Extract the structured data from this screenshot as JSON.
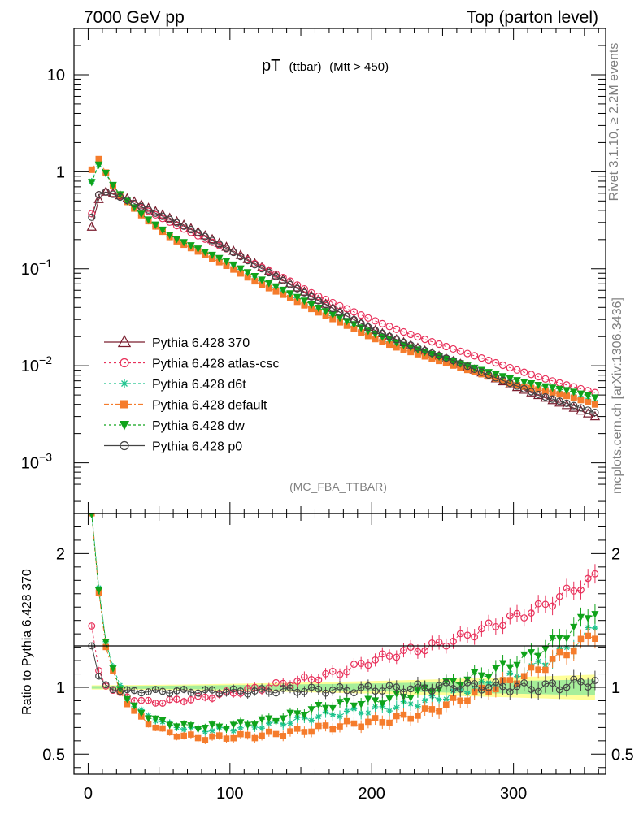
{
  "header": {
    "left": "7000 GeV pp",
    "right": "Top (parton level)"
  },
  "side": {
    "rivet": "Rivet 3.1.10, ≥ 2.2M events",
    "mcplots": "mcplots.cern.ch [arXiv:1306.3436]"
  },
  "plot": {
    "title_main": "pT",
    "title_sub1": "(ttbar)",
    "title_sub2": "(Mtt > 450)",
    "analysis": "(MC_FBA_TTBAR)",
    "ratio_ylabel": "Ratio to Pythia 6.428 370"
  },
  "chart_data": {
    "type": "scatter",
    "x_range": [
      -10,
      365
    ],
    "main_yscale": "log",
    "main_ylim": [
      0.0003,
      30
    ],
    "ratio_ylim": [
      0.35,
      2.3
    ],
    "main_ticks": [
      {
        "value": 10,
        "base": "10",
        "exp": ""
      },
      {
        "value": 1,
        "base": "1",
        "exp": ""
      },
      {
        "value": 0.1,
        "base": "10",
        "exp": "−1"
      },
      {
        "value": 0.01,
        "base": "10",
        "exp": "−2"
      },
      {
        "value": 0.001,
        "base": "10",
        "exp": "−3"
      }
    ],
    "ratio_ticks": [
      {
        "value": 2,
        "label": "2"
      },
      {
        "value": 1,
        "label": "1"
      },
      {
        "value": 0.5,
        "label": "0.5"
      }
    ],
    "x_ticks": [
      {
        "value": 0,
        "label": "0"
      },
      {
        "value": 100,
        "label": "100"
      },
      {
        "value": 200,
        "label": "200"
      },
      {
        "value": 300,
        "label": "300"
      }
    ],
    "bin_width": 5,
    "x_start": 2.5,
    "n_bins": 72,
    "series": [
      {
        "name": "Pythia 6.428 370",
        "color": "#7a1d2e",
        "marker": "triangle-open",
        "dash": "",
        "main": {
          "x": [
            2.5,
            7.5,
            12.5,
            20,
            40,
            60,
            80,
            100,
            120,
            140,
            160,
            180,
            200,
            220,
            240,
            260,
            280,
            300,
            320,
            340,
            357.5
          ],
          "y": [
            0.27,
            0.52,
            0.62,
            0.59,
            0.44,
            0.32,
            0.23,
            0.16,
            0.108,
            0.074,
            0.05,
            0.034,
            0.024,
            0.018,
            0.0138,
            0.0108,
            0.0082,
            0.0062,
            0.0048,
            0.0038,
            0.003
          ]
        },
        "ratio": {
          "x": [
            2.5,
            357.5
          ],
          "y": [
            1,
            1
          ]
        }
      },
      {
        "name": "Pythia 6.428 atlas-csc",
        "color": "#e8305a",
        "marker": "circle-open",
        "dash": "3,3",
        "main": {
          "x": [
            2.5,
            7.5,
            12.5,
            20,
            40,
            60,
            80,
            100,
            120,
            140,
            160,
            180,
            200,
            220,
            240,
            260,
            280,
            300,
            320,
            340,
            357.5
          ],
          "y": [
            0.37,
            0.58,
            0.62,
            0.58,
            0.41,
            0.29,
            0.21,
            0.155,
            0.108,
            0.078,
            0.054,
            0.04,
            0.03,
            0.023,
            0.0182,
            0.0145,
            0.0117,
            0.0093,
            0.0075,
            0.0062,
            0.0053
          ]
        },
        "ratio": {
          "x": [
            2.5,
            7.5,
            12.5,
            20,
            30,
            40,
            50,
            60,
            80,
            100,
            120,
            140,
            160,
            180,
            200,
            220,
            240,
            260,
            280,
            300,
            320,
            340,
            357.5
          ],
          "y": [
            1.45,
            1.12,
            1.02,
            0.96,
            0.92,
            0.89,
            0.89,
            0.9,
            0.92,
            0.96,
            0.99,
            1.03,
            1.07,
            1.12,
            1.2,
            1.26,
            1.3,
            1.36,
            1.44,
            1.52,
            1.6,
            1.72,
            1.82
          ]
        }
      },
      {
        "name": "Pythia 6.428 d6t",
        "color": "#1ec48e",
        "marker": "star",
        "dash": "3,3",
        "main": {
          "x": [
            2.5,
            7.5,
            12.5,
            20,
            40,
            60,
            80,
            100,
            120,
            140,
            160,
            180,
            200,
            220,
            240,
            260,
            280,
            300,
            320,
            340,
            357.5
          ],
          "y": [
            0.8,
            1.2,
            0.95,
            0.62,
            0.33,
            0.2,
            0.15,
            0.11,
            0.075,
            0.055,
            0.039,
            0.028,
            0.02,
            0.0155,
            0.0125,
            0.0102,
            0.0083,
            0.0066,
            0.0057,
            0.005,
            0.0042
          ]
        },
        "ratio": {
          "x": [
            2.5,
            7.5,
            12.5,
            20,
            30,
            40,
            50,
            60,
            80,
            100,
            120,
            140,
            160,
            180,
            200,
            220,
            240,
            260,
            280,
            300,
            320,
            340,
            357.5
          ],
          "y": [
            2.3,
            1.75,
            1.35,
            1.05,
            0.88,
            0.8,
            0.75,
            0.71,
            0.68,
            0.69,
            0.71,
            0.74,
            0.78,
            0.81,
            0.83,
            0.86,
            0.9,
            0.96,
            1.02,
            1.08,
            1.18,
            1.3,
            1.45
          ]
        }
      },
      {
        "name": "Pythia 6.428 default",
        "color": "#f57c2c",
        "marker": "square",
        "dash": "6,3,2,3",
        "main": {
          "x": [
            2.5,
            7.5,
            12.5,
            20,
            40,
            60,
            80,
            100,
            120,
            140,
            160,
            180,
            200,
            220,
            240,
            260,
            280,
            300,
            320,
            340,
            357.5
          ],
          "y": [
            1.05,
            1.35,
            0.98,
            0.62,
            0.33,
            0.2,
            0.145,
            0.103,
            0.071,
            0.052,
            0.037,
            0.027,
            0.0195,
            0.015,
            0.0122,
            0.0098,
            0.008,
            0.0064,
            0.0056,
            0.0048,
            0.004
          ]
        },
        "ratio": {
          "x": [
            2.5,
            7.5,
            12.5,
            20,
            30,
            40,
            50,
            60,
            80,
            100,
            120,
            140,
            160,
            180,
            200,
            220,
            240,
            260,
            280,
            300,
            320,
            340,
            357.5
          ],
          "y": [
            2.3,
            1.72,
            1.3,
            1.02,
            0.84,
            0.75,
            0.69,
            0.65,
            0.62,
            0.63,
            0.64,
            0.66,
            0.69,
            0.72,
            0.74,
            0.77,
            0.82,
            0.9,
            0.98,
            1.05,
            1.15,
            1.28,
            1.4
          ]
        }
      },
      {
        "name": "Pythia 6.428 dw",
        "color": "#0fa31a",
        "marker": "triangle-down",
        "dash": "3,3",
        "main": {
          "x": [
            2.5,
            7.5,
            12.5,
            20,
            40,
            60,
            80,
            100,
            120,
            140,
            160,
            180,
            200,
            220,
            240,
            260,
            280,
            300,
            320,
            340,
            357.5
          ],
          "y": [
            0.78,
            1.18,
            0.97,
            0.63,
            0.34,
            0.21,
            0.155,
            0.115,
            0.08,
            0.058,
            0.041,
            0.03,
            0.022,
            0.0168,
            0.0135,
            0.0108,
            0.0088,
            0.0072,
            0.0062,
            0.0055,
            0.0047
          ]
        },
        "ratio": {
          "x": [
            2.5,
            7.5,
            12.5,
            20,
            30,
            40,
            50,
            60,
            80,
            100,
            120,
            140,
            160,
            180,
            200,
            220,
            240,
            260,
            280,
            300,
            320,
            340,
            357.5
          ],
          "y": [
            2.3,
            1.73,
            1.33,
            1.04,
            0.87,
            0.79,
            0.75,
            0.72,
            0.7,
            0.71,
            0.74,
            0.78,
            0.84,
            0.88,
            0.89,
            0.93,
            0.98,
            1.04,
            1.1,
            1.18,
            1.28,
            1.42,
            1.58
          ]
        }
      },
      {
        "name": "Pythia 6.428 p0",
        "color": "#444444",
        "marker": "circle-open",
        "dash": "",
        "main": {
          "x": [
            2.5,
            7.5,
            12.5,
            20,
            40,
            60,
            80,
            100,
            120,
            140,
            160,
            180,
            200,
            220,
            240,
            260,
            280,
            300,
            320,
            340,
            357.5
          ],
          "y": [
            0.34,
            0.58,
            0.62,
            0.57,
            0.42,
            0.31,
            0.225,
            0.155,
            0.105,
            0.072,
            0.049,
            0.034,
            0.024,
            0.018,
            0.0139,
            0.011,
            0.0083,
            0.0064,
            0.0049,
            0.004,
            0.0033
          ]
        },
        "ratio": {
          "x": [
            2.5,
            7.5,
            12.5,
            20,
            30,
            40,
            60,
            80,
            100,
            120,
            140,
            160,
            180,
            200,
            220,
            240,
            260,
            280,
            300,
            320,
            340,
            357.5
          ],
          "y": [
            1.32,
            1.08,
            1.01,
            0.98,
            0.97,
            0.97,
            0.97,
            0.97,
            0.97,
            0.97,
            0.98,
            0.98,
            0.98,
            0.99,
            0.99,
            1.0,
            1.01,
            1.01,
            1.0,
            1.0,
            1.02,
            1.05
          ]
        }
      }
    ]
  }
}
